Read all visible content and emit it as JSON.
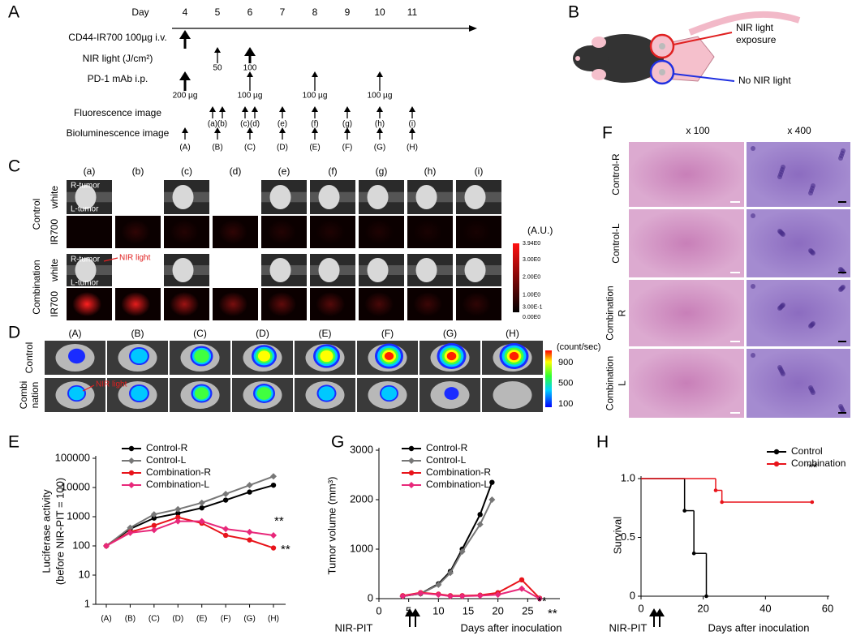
{
  "panel_a": {
    "label": "A",
    "day_title": "Day",
    "days": [
      "4",
      "5",
      "6",
      "7",
      "8",
      "9",
      "10",
      "11"
    ],
    "rows": [
      {
        "label": "CD44-IR700 100µg i.v.",
        "marks": [
          {
            "day": "4",
            "bold": true
          }
        ]
      },
      {
        "label": "NIR light (J/cm²)",
        "marks": [
          {
            "day": "5",
            "text": "50"
          },
          {
            "day": "6",
            "text": "100",
            "bold": true
          }
        ]
      },
      {
        "label": "PD-1 mAb i.p.",
        "marks": [
          {
            "day": "4",
            "text": "200 µg",
            "bold": true
          },
          {
            "day": "6",
            "text": "100 µg"
          },
          {
            "day": "8",
            "text": "100 µg"
          },
          {
            "day": "10",
            "text": "100 µg"
          }
        ]
      },
      {
        "label": "Fluorescence image",
        "marks": [
          {
            "day": "5",
            "text": "(a)"
          },
          {
            "day": "5",
            "text": "(b)"
          },
          {
            "day": "6",
            "text": "(c)"
          },
          {
            "day": "6",
            "text": "(d)"
          },
          {
            "day": "7",
            "text": "(e)"
          },
          {
            "day": "8",
            "text": "(f)"
          },
          {
            "day": "9",
            "text": "(g)"
          },
          {
            "day": "10",
            "text": "(h)"
          },
          {
            "day": "11",
            "text": "(i)"
          }
        ]
      },
      {
        "label": "Bioluminescence image",
        "marks": [
          {
            "day": "4",
            "text": "(A)"
          },
          {
            "day": "5",
            "text": "(B)"
          },
          {
            "day": "6",
            "text": "(C)"
          },
          {
            "day": "7",
            "text": "(D)"
          },
          {
            "day": "8",
            "text": "(E)"
          },
          {
            "day": "9",
            "text": "(F)"
          },
          {
            "day": "10",
            "text": "(G)"
          },
          {
            "day": "11",
            "text": "(H)"
          }
        ]
      }
    ]
  },
  "panel_b": {
    "label": "B",
    "exposed": [
      "NIR light",
      "exposure"
    ],
    "unexposed": "No NIR light"
  },
  "panel_c": {
    "label": "C",
    "columns": [
      "(a)",
      "(b)",
      "(c)",
      "(d)",
      "(e)",
      "(f)",
      "(g)",
      "(h)",
      "(i)"
    ],
    "groups": [
      "Control",
      "Combination"
    ],
    "rows": [
      "white",
      "IR700"
    ],
    "tumor_labels": [
      "R-tumor",
      "L-tumor"
    ],
    "nir_label": "NIR light",
    "colorbar": {
      "unit": "(A.U.)",
      "ticks": [
        "3.94E0",
        "3.00E0",
        "2.00E0",
        "1.00E0",
        "3.00E-1",
        "0.00E0"
      ]
    }
  },
  "panel_d": {
    "label": "D",
    "columns": [
      "(A)",
      "(B)",
      "(C)",
      "(D)",
      "(E)",
      "(F)",
      "(G)",
      "(H)"
    ],
    "groups": [
      [
        "Control"
      ],
      [
        "Combi",
        "nation"
      ]
    ],
    "nir_label": "NIR light",
    "colorbar": {
      "unit": "(count/sec)",
      "ticks": [
        "900",
        "500",
        "100"
      ]
    }
  },
  "panel_f": {
    "label": "F",
    "magnifications": [
      "x 100",
      "x 400"
    ],
    "rows": [
      [
        "Control-R"
      ],
      [
        "Control-L"
      ],
      [
        "Combination",
        "R"
      ],
      [
        "Combination",
        "L"
      ]
    ]
  },
  "chart_data": [
    {
      "type": "line",
      "panel_label": "E",
      "categories": [
        "(A)",
        "(B)",
        "(C)",
        "(D)",
        "(E)",
        "(F)",
        "(G)",
        "(H)"
      ],
      "ylabel": [
        "Luciferase activity",
        "(before NIR-PIT = 100)"
      ],
      "log": true,
      "ylim": [
        1,
        100000
      ],
      "yticks": [
        1,
        10,
        100,
        1000,
        10000,
        100000
      ],
      "legend": "upper left",
      "series": [
        {
          "name": "Control-R",
          "color": "#000000",
          "marker": "circle",
          "values": [
            100,
            380,
            900,
            1300,
            2000,
            3700,
            7000,
            12000
          ]
        },
        {
          "name": "Control-L",
          "color": "#777777",
          "marker": "diamond",
          "values": [
            100,
            420,
            1200,
            1800,
            3000,
            6000,
            12000,
            24000
          ]
        },
        {
          "name": "Combination-R",
          "color": "#e8141b",
          "marker": "circle",
          "values": [
            100,
            300,
            500,
            950,
            600,
            230,
            160,
            85
          ]
        },
        {
          "name": "Combination-L",
          "color": "#e8287a",
          "marker": "diamond",
          "values": [
            100,
            280,
            350,
            700,
            700,
            380,
            300,
            230
          ]
        }
      ],
      "annotations": [
        "**",
        "**"
      ]
    },
    {
      "type": "line",
      "panel_label": "G",
      "ylabel": "Tumor volume (mm³)",
      "xlabel": "Days after inoculation",
      "treatment_label": "NIR-PIT",
      "xlim": [
        0,
        30
      ],
      "xticks": [
        0,
        5,
        10,
        15,
        20,
        25
      ],
      "ylim": [
        0,
        3000
      ],
      "yticks": [
        0,
        1000,
        2000,
        3000
      ],
      "legend": "upper left",
      "series": [
        {
          "name": "Control-R",
          "color": "#000000",
          "marker": "circle",
          "x": [
            4,
            7,
            10,
            12,
            14,
            17,
            19
          ],
          "values": [
            50,
            100,
            300,
            550,
            1000,
            1700,
            2350
          ]
        },
        {
          "name": "Control-L",
          "color": "#777777",
          "marker": "diamond",
          "x": [
            4,
            7,
            10,
            12,
            14,
            17,
            19
          ],
          "values": [
            50,
            100,
            280,
            520,
            950,
            1500,
            2000
          ]
        },
        {
          "name": "Combination-R",
          "color": "#e8141b",
          "marker": "circle",
          "x": [
            4,
            7,
            10,
            12,
            14,
            17,
            20,
            24,
            27
          ],
          "values": [
            60,
            120,
            90,
            60,
            60,
            70,
            120,
            380,
            10
          ]
        },
        {
          "name": "Combination-L",
          "color": "#e8287a",
          "marker": "diamond",
          "x": [
            4,
            7,
            10,
            12,
            14,
            17,
            20,
            24,
            27
          ],
          "values": [
            50,
            110,
            80,
            50,
            50,
            60,
            80,
            200,
            0
          ]
        }
      ],
      "annotations": [
        "**",
        "**"
      ]
    },
    {
      "type": "step",
      "panel_label": "H",
      "ylabel": "Survival",
      "xlabel": "Days after inoculation",
      "treatment_label": "NIR-PIT",
      "xlim": [
        0,
        60
      ],
      "xticks": [
        0,
        20,
        40,
        60
      ],
      "ylim": [
        0,
        1
      ],
      "yticks": [
        0,
        0.5,
        {
          "value": 1,
          "label": "1.0"
        }
      ],
      "legend": "upper right",
      "series": [
        {
          "name": "Control",
          "color": "#000000",
          "marker": "circle",
          "x": [
            0,
            14,
            17,
            21
          ],
          "values": [
            1,
            0.727,
            0.364,
            0
          ]
        },
        {
          "name": "Combination",
          "color": "#e8141b",
          "marker": "circle",
          "x": [
            0,
            24,
            26,
            55
          ],
          "values": [
            1,
            0.9,
            0.8,
            0.8
          ]
        }
      ],
      "annotations": [
        "**"
      ]
    }
  ]
}
